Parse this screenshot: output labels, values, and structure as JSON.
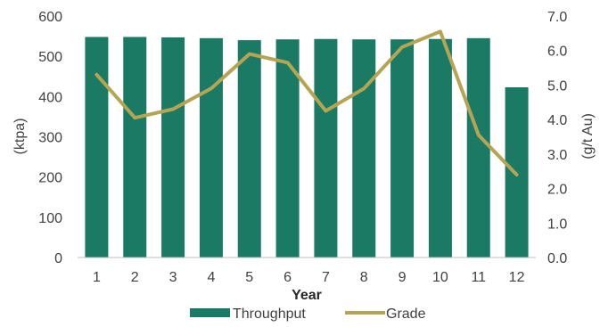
{
  "chart_data": {
    "type": "bar",
    "categories": [
      "1",
      "2",
      "3",
      "4",
      "5",
      "6",
      "7",
      "8",
      "9",
      "10",
      "11",
      "12"
    ],
    "xlabel": "Year",
    "ylabel": "(ktpa)",
    "y2label": "(g/t Au)",
    "ylim": [
      0,
      600
    ],
    "y2lim": [
      0,
      7
    ],
    "y_ticks": [
      "0",
      "100",
      "200",
      "300",
      "400",
      "500",
      "600"
    ],
    "y2_ticks": [
      "0.0",
      "1.0",
      "2.0",
      "3.0",
      "4.0",
      "5.0",
      "6.0",
      "7.0"
    ],
    "legend_position": "bottom",
    "grid": false,
    "series": [
      {
        "name": "Throughput",
        "type": "bar",
        "axis": "left",
        "color": "#1a7a63",
        "values": [
          548,
          548,
          547,
          545,
          540,
          542,
          543,
          542,
          542,
          543,
          545,
          423
        ]
      },
      {
        "name": "Grade",
        "type": "line",
        "axis": "right",
        "color": "#b5a453",
        "values": [
          5.3,
          4.05,
          4.3,
          4.9,
          5.9,
          5.65,
          4.25,
          4.9,
          6.1,
          6.55,
          3.55,
          2.4
        ]
      }
    ]
  }
}
